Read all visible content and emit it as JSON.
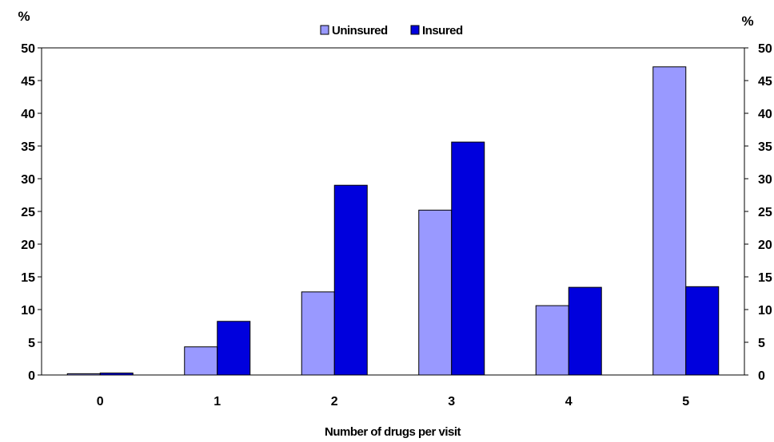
{
  "chart_data": {
    "type": "bar",
    "categories": [
      "0",
      "1",
      "2",
      "3",
      "4",
      "5"
    ],
    "series": [
      {
        "name": "Uninsured",
        "color": "#9999ff",
        "values": [
          0.2,
          4.3,
          12.7,
          25.2,
          10.6,
          47.1
        ]
      },
      {
        "name": "Insured",
        "color": "#0000dd",
        "values": [
          0.3,
          8.2,
          29.0,
          35.6,
          13.4,
          13.5
        ]
      }
    ],
    "title": "",
    "xlabel": "Number of drugs per visit",
    "ylabel_left": "%",
    "ylabel_right": "%",
    "ylim": [
      0,
      50
    ],
    "yticks": [
      "0",
      "5",
      "10",
      "15",
      "20",
      "25",
      "30",
      "35",
      "40",
      "45",
      "50"
    ],
    "grid": false,
    "legend_position": "top-center"
  }
}
